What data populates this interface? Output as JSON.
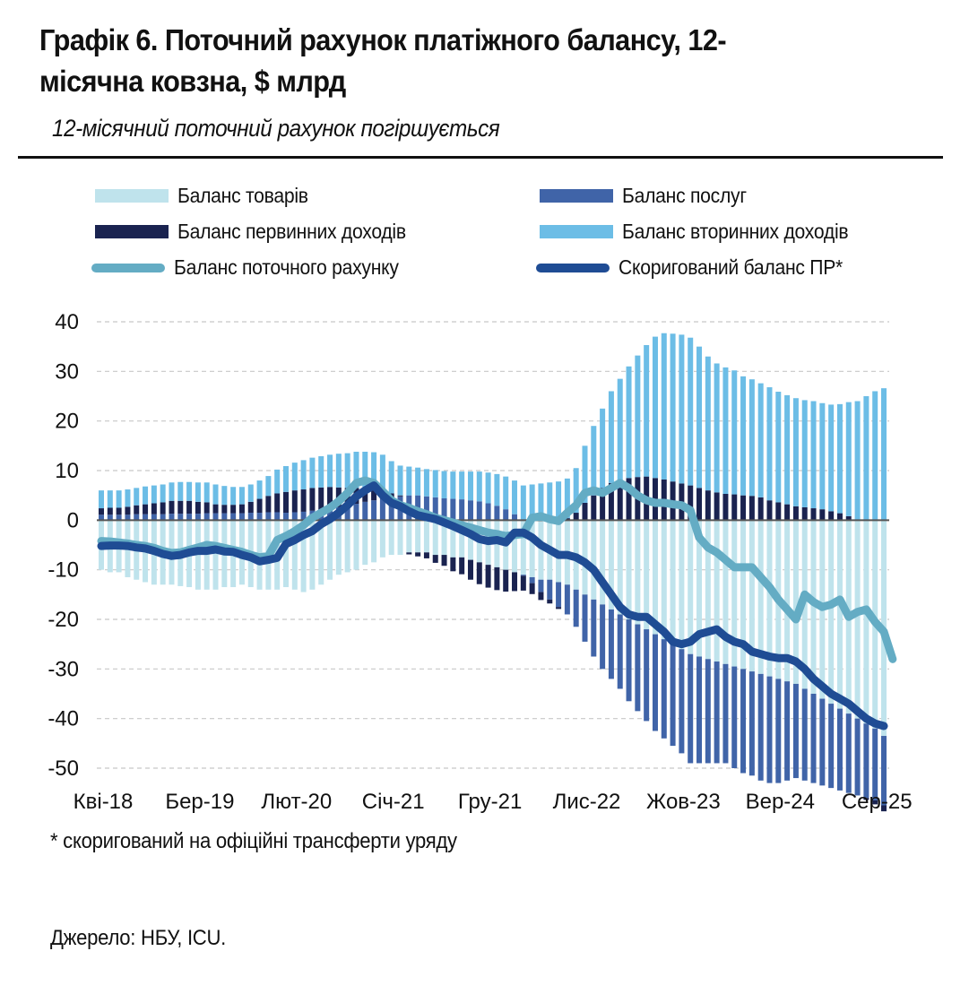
{
  "header": {
    "title_line1": "Графік 6. Поточний рахунок платіжного балансу, 12-",
    "title_line2": "місячна ковзна, $ млрд",
    "subtitle": "12-місячний поточний рахунок погіршується"
  },
  "legend": [
    {
      "key": "goods",
      "label": "Баланс товарів",
      "color": "#bfe3ec",
      "kind": "bar"
    },
    {
      "key": "services",
      "label": "Баланс послуг",
      "color": "#4064a8",
      "kind": "bar"
    },
    {
      "key": "primary",
      "label": "Баланс первинних доходів",
      "color": "#1a2350",
      "kind": "bar"
    },
    {
      "key": "secondary",
      "label": "Баланс вторинних доходів",
      "color": "#6cbde6",
      "kind": "bar"
    },
    {
      "key": "current",
      "label": "Баланс поточного рахунку",
      "color": "#64acc4",
      "kind": "line"
    },
    {
      "key": "adjusted",
      "label": "Скоригований баланс ПР*",
      "color": "#1f4c94",
      "kind": "line"
    }
  ],
  "footnote": "* скоригований на офіційні трансферти уряду",
  "source": "Джерело: НБУ, ICU.",
  "chart_data": {
    "type": "bar",
    "title": "Графік 6. Поточний рахунок платіжного балансу, 12-місячна ковзна, $ млрд",
    "xlabel": "",
    "ylabel": "",
    "ylim": [
      -50,
      40
    ],
    "yticks": [
      40,
      30,
      20,
      10,
      0,
      -10,
      -20,
      -30,
      -40,
      -50
    ],
    "grid": true,
    "legend_position": "top",
    "x_start": "Кві-18",
    "x_end": "Вер-25",
    "tick_labels": [
      "Кві-18",
      "Бер-19",
      "Лют-20",
      "Січ-21",
      "Гру-21",
      "Лис-22",
      "Жов-23",
      "Вер-24",
      "Сер-25"
    ],
    "tick_indices": [
      0,
      11,
      22,
      33,
      44,
      55,
      66,
      77,
      88
    ],
    "series": [
      {
        "name": "Баланс товарів",
        "kind": "stacked-bar",
        "values": [
          -10,
          -10.5,
          -10.5,
          -11.5,
          -12,
          -12.5,
          -13,
          -13,
          -13,
          -13.3,
          -13.5,
          -14,
          -14,
          -14,
          -13.5,
          -13.5,
          -13,
          -13.5,
          -14,
          -14,
          -14,
          -13.5,
          -14,
          -14.5,
          -14,
          -13,
          -12,
          -11,
          -10.5,
          -10,
          -9,
          -8.5,
          -7.5,
          -7,
          -7,
          -6.5,
          -6.5,
          -6.5,
          -7,
          -7,
          -7.5,
          -7.5,
          -8,
          -8.5,
          -9,
          -9.5,
          -10,
          -10.5,
          -11,
          -11.5,
          -12,
          -12,
          -12.5,
          -13,
          -14,
          -15,
          -16,
          -17,
          -18,
          -19,
          -20,
          -21,
          -22,
          -23,
          -24,
          -25,
          -26,
          -27,
          -27.5,
          -28,
          -28.5,
          -29,
          -29.5,
          -30,
          -30.5,
          -31,
          -31.5,
          -32,
          -32.5,
          -33,
          -34,
          -35,
          -36,
          -37,
          -38,
          -39,
          -40,
          -41,
          -42,
          -43.5
        ]
      },
      {
        "name": "Баланс послуг",
        "kind": "stacked-bar",
        "values": [
          1.1,
          1.1,
          1.1,
          1.1,
          1.2,
          1.2,
          1.2,
          1.2,
          1.3,
          1.3,
          1.3,
          1.3,
          1.4,
          1.4,
          1.4,
          1.4,
          1.4,
          1.5,
          1.5,
          1.6,
          1.6,
          1.5,
          1.6,
          1.7,
          1.9,
          2.1,
          2.3,
          2.6,
          2.9,
          3.3,
          3.7,
          4.0,
          4.3,
          4.6,
          4.8,
          5.0,
          5.0,
          4.8,
          4.6,
          4.4,
          4.3,
          4.2,
          4.0,
          3.8,
          3.4,
          2.9,
          2.2,
          1.2,
          -0.2,
          -1.2,
          -2.5,
          -4.0,
          -5.0,
          -6.0,
          -7.5,
          -9.5,
          -11.5,
          -13,
          -14,
          -15,
          -16.5,
          -17.5,
          -18.5,
          -19.5,
          -20,
          -20.5,
          -21,
          -22,
          -21.5,
          -21,
          -20.5,
          -20,
          -20.5,
          -21,
          -21,
          -21.5,
          -21.5,
          -21,
          -20,
          -19,
          -18.5,
          -18,
          -17.5,
          -17,
          -16.5,
          -16,
          -15.5,
          -15,
          -14.5,
          -14
        ]
      },
      {
        "name": "Баланс первинних доходів",
        "kind": "stacked-bar",
        "values": [
          1.3,
          1.4,
          1.4,
          1.6,
          1.8,
          2.0,
          2.2,
          2.4,
          2.6,
          2.6,
          2.6,
          2.4,
          2.2,
          1.8,
          1.7,
          1.7,
          1.8,
          2.2,
          2.8,
          3.3,
          3.8,
          4.2,
          4.4,
          4.5,
          4.6,
          4.5,
          4.4,
          4.0,
          3.6,
          3.2,
          2.6,
          2.0,
          1.4,
          0.8,
          0.2,
          -0.4,
          -0.8,
          -1.2,
          -1.6,
          -2.2,
          -2.8,
          -3.4,
          -4.0,
          -4.4,
          -4.6,
          -4.6,
          -4.4,
          -3.8,
          -3.0,
          -2.2,
          -1.6,
          -0.8,
          -0.4,
          0.4,
          1.5,
          3.5,
          5.0,
          6.5,
          7.5,
          8.0,
          8.5,
          8.7,
          8.8,
          8.5,
          8.2,
          7.8,
          7.4,
          7.0,
          6.5,
          6.0,
          5.6,
          5.3,
          5.2,
          5.0,
          4.9,
          4.6,
          4.0,
          3.6,
          3.2,
          2.8,
          2.6,
          2.4,
          2.2,
          1.8,
          1.4,
          0.8,
          0.0,
          -0.4,
          -0.8,
          -1.2
        ]
      },
      {
        "name": "Баланс вторинних доходів",
        "kind": "stacked-bar",
        "values": [
          3.6,
          3.5,
          3.5,
          3.5,
          3.5,
          3.6,
          3.6,
          3.6,
          3.7,
          3.8,
          3.8,
          3.9,
          4.0,
          4.0,
          3.8,
          3.6,
          3.5,
          3.5,
          3.7,
          4.0,
          4.8,
          5.2,
          5.6,
          5.9,
          6.1,
          6.3,
          6.5,
          6.8,
          7.0,
          7.3,
          7.5,
          7.7,
          7.5,
          6.5,
          6.0,
          5.8,
          5.6,
          5.5,
          5.5,
          5.5,
          5.5,
          5.6,
          5.8,
          6.0,
          6.2,
          6.4,
          6.6,
          6.8,
          7.0,
          7.2,
          7.4,
          7.6,
          7.8,
          8.0,
          9.0,
          11.5,
          14.0,
          16.0,
          18.5,
          20.5,
          22.5,
          24.5,
          26.5,
          28.5,
          29.5,
          29.8,
          30.0,
          29.8,
          28.5,
          27.0,
          26.0,
          25.5,
          25.0,
          24.0,
          23.5,
          23.0,
          22.8,
          22.3,
          22.0,
          21.8,
          21.6,
          21.6,
          21.4,
          21.5,
          22.0,
          23.0,
          24.0,
          25.0,
          26.0,
          26.6
        ]
      },
      {
        "name": "Баланс поточного рахунку",
        "kind": "line",
        "values": [
          -4.2,
          -4.3,
          -4.5,
          -4.7,
          -5.0,
          -5.2,
          -5.6,
          -6.2,
          -6.6,
          -6.5,
          -6.0,
          -5.5,
          -5.0,
          -5.2,
          -5.6,
          -6.0,
          -6.4,
          -7.0,
          -7.5,
          -7.2,
          -4.0,
          -3.2,
          -2.2,
          -1.0,
          0.5,
          1.5,
          2.5,
          3.8,
          5.5,
          7.5,
          8.0,
          7.5,
          5.8,
          4.0,
          3.0,
          2.5,
          1.8,
          1.2,
          0.5,
          0.0,
          -0.5,
          -1.0,
          -1.5,
          -2.0,
          -2.5,
          -2.8,
          -3.2,
          -3.0,
          -2.8,
          0.5,
          0.8,
          0.2,
          -0.2,
          1.5,
          3.0,
          5.5,
          6.0,
          5.5,
          6.5,
          7.5,
          6.5,
          5.0,
          4.0,
          3.5,
          3.5,
          3.2,
          3.0,
          2.0,
          -3.5,
          -5.5,
          -6.5,
          -8.0,
          -9.5,
          -9.5,
          -9.5,
          -11.5,
          -13.5,
          -16.0,
          -18.0,
          -20.0,
          -15.0,
          -16.5,
          -17.5,
          -17.0,
          -16.0,
          -19.5,
          -18.5,
          -18.0,
          -20.5,
          -22.5,
          -28.0
        ]
      },
      {
        "name": "Скоригований баланс ПР*",
        "kind": "line",
        "values": [
          -5.2,
          -5.1,
          -5.1,
          -5.2,
          -5.5,
          -5.7,
          -6.2,
          -6.8,
          -7.2,
          -7.0,
          -6.5,
          -6.2,
          -6.2,
          -5.9,
          -6.3,
          -6.4,
          -7.0,
          -7.5,
          -8.3,
          -8.0,
          -7.6,
          -4.8,
          -4.0,
          -3.0,
          -2.2,
          -0.8,
          0.2,
          1.5,
          3.0,
          4.8,
          6.0,
          7.0,
          5.0,
          3.5,
          2.8,
          1.8,
          1.0,
          0.6,
          0.2,
          -0.5,
          -1.2,
          -2.0,
          -2.8,
          -3.8,
          -4.2,
          -4.0,
          -4.5,
          -2.5,
          -2.5,
          -3.5,
          -5.0,
          -6.0,
          -7.0,
          -7.0,
          -7.5,
          -8.5,
          -10.0,
          -12.5,
          -15.0,
          -17.5,
          -19.0,
          -19.5,
          -19.5,
          -21.0,
          -22.5,
          -24.5,
          -25.0,
          -24.5,
          -23.0,
          -22.5,
          -22.0,
          -23.5,
          -24.5,
          -25.0,
          -26.5,
          -27.0,
          -27.5,
          -27.8,
          -27.8,
          -28.5,
          -30.0,
          -32.0,
          -33.5,
          -35.0,
          -36.0,
          -37.0,
          -38.5,
          -40.0,
          -41.0,
          -41.5
        ]
      }
    ]
  }
}
